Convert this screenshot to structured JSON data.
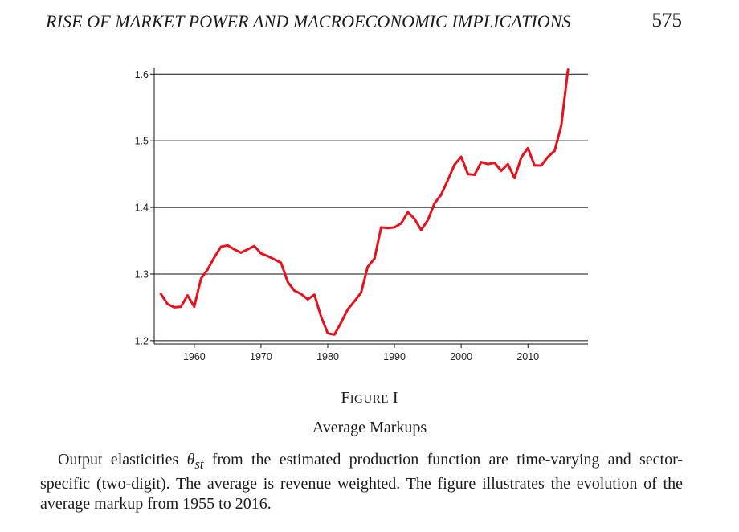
{
  "running_head": {
    "title": "RISE OF MARKET POWER AND MACROECONOMIC IMPLICATIONS",
    "page_number": "575"
  },
  "figure": {
    "label_prefix": "F",
    "label_smallcaps": "IGURE",
    "label_numeral": "I",
    "title": "Average Markups",
    "caption_pre": "Output elasticities ",
    "caption_symbol": "θ",
    "caption_subscript": "st",
    "caption_post": " from the estimated production function are time-varying and sector-specific (two-digit). The average is revenue weighted. The figure illustrates the evolution of the average markup from 1955 to 2016."
  },
  "chart_data": {
    "type": "line",
    "title": "",
    "xlabel": "",
    "ylabel": "",
    "xlim": [
      1954,
      2019
    ],
    "ylim": [
      1.195,
      1.61
    ],
    "x_ticks": [
      1960,
      1970,
      1980,
      1990,
      2000,
      2010
    ],
    "y_ticks": [
      1.2,
      1.3,
      1.4,
      1.5,
      1.6
    ],
    "y_tick_labels": [
      "1.2",
      "1.3",
      "1.4",
      "1.5",
      "1.6"
    ],
    "grid": "horizontal",
    "line_color": "#e8101c",
    "series": [
      {
        "name": "Average markup",
        "x": [
          1955,
          1956,
          1957,
          1958,
          1959,
          1960,
          1961,
          1962,
          1963,
          1964,
          1965,
          1966,
          1967,
          1968,
          1969,
          1970,
          1971,
          1972,
          1973,
          1974,
          1975,
          1976,
          1977,
          1978,
          1979,
          1980,
          1981,
          1982,
          1983,
          1984,
          1985,
          1986,
          1987,
          1988,
          1989,
          1990,
          1991,
          1992,
          1993,
          1994,
          1995,
          1996,
          1997,
          1998,
          1999,
          2000,
          2001,
          2002,
          2003,
          2004,
          2005,
          2006,
          2007,
          2008,
          2009,
          2010,
          2011,
          2012,
          2013,
          2014,
          2015,
          2016
        ],
        "values": [
          1.27,
          1.255,
          1.25,
          1.251,
          1.268,
          1.251,
          1.293,
          1.307,
          1.325,
          1.341,
          1.343,
          1.337,
          1.332,
          1.337,
          1.342,
          1.331,
          1.327,
          1.322,
          1.317,
          1.288,
          1.275,
          1.27,
          1.262,
          1.269,
          1.236,
          1.211,
          1.209,
          1.227,
          1.247,
          1.259,
          1.272,
          1.311,
          1.323,
          1.37,
          1.369,
          1.37,
          1.376,
          1.393,
          1.383,
          1.366,
          1.381,
          1.406,
          1.419,
          1.441,
          1.464,
          1.476,
          1.45,
          1.449,
          1.468,
          1.465,
          1.467,
          1.455,
          1.465,
          1.444,
          1.475,
          1.489,
          1.463,
          1.463,
          1.476,
          1.485,
          1.523,
          1.607
        ]
      }
    ]
  }
}
